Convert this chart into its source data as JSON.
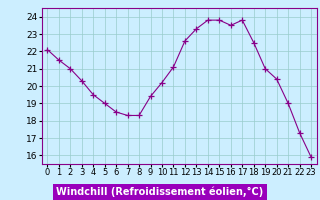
{
  "x": [
    0,
    1,
    2,
    3,
    4,
    5,
    6,
    7,
    8,
    9,
    10,
    11,
    12,
    13,
    14,
    15,
    16,
    17,
    18,
    19,
    20,
    21,
    22,
    23
  ],
  "y": [
    22.1,
    21.5,
    21.0,
    20.3,
    19.5,
    19.0,
    18.5,
    18.3,
    18.3,
    19.4,
    20.2,
    21.1,
    22.6,
    23.3,
    23.8,
    23.8,
    23.5,
    23.8,
    22.5,
    21.0,
    20.4,
    19.0,
    17.3,
    15.9
  ],
  "line_color": "#880088",
  "marker": "+",
  "marker_size": 4,
  "bg_color": "#cceeff",
  "grid_color": "#99cccc",
  "tick_label_fontsize": 6.5,
  "ylim": [
    15.5,
    24.5
  ],
  "yticks": [
    16,
    17,
    18,
    19,
    20,
    21,
    22,
    23,
    24
  ],
  "xtick_labels": [
    "0",
    "1",
    "2",
    "3",
    "4",
    "5",
    "6",
    "7",
    "8",
    "9",
    "10",
    "11",
    "12",
    "13",
    "14",
    "15",
    "16",
    "17",
    "18",
    "19",
    "20",
    "21",
    "22",
    "23"
  ],
  "xlabel": "Windchill (Refroidissement éolien,°C)",
  "xlabel_fontsize": 7,
  "xlabel_bg_color": "#9900bb",
  "xlabel_text_color": "#ffffff",
  "spine_color": "#880088"
}
